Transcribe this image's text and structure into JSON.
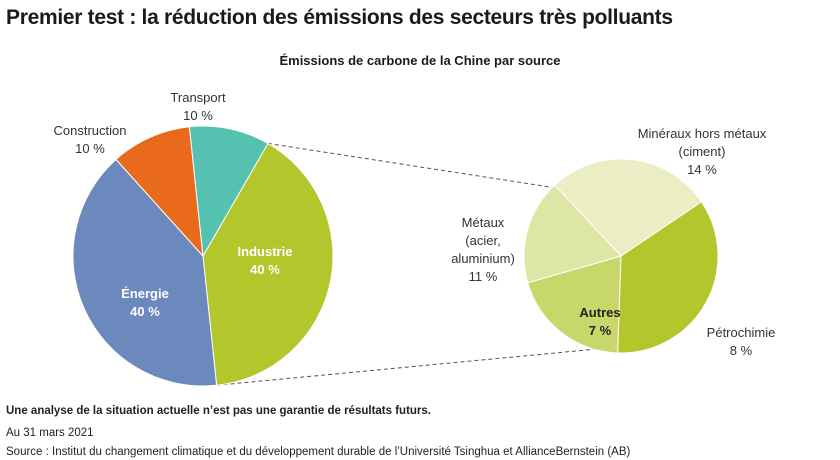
{
  "page": {
    "title": "Premier test : la réduction des émissions des secteurs très polluants",
    "disclaimer": "Une analyse de la situation actuelle n’est pas une garantie de résultats futurs.",
    "date": "Au 31 mars 2021",
    "source": "Source : Institut du changement climatique et du développement durable de l’Université Tsinghua et AllianceBernstein (AB)"
  },
  "chart_data": [
    {
      "type": "pie",
      "title": "Émissions de carbone de la Chine par source",
      "slices": [
        {
          "label": "Industrie",
          "value": 40,
          "value_label": "40 %",
          "color": "#b3c62c",
          "label_color": "#ffffff",
          "bold": true
        },
        {
          "label": "Énergie",
          "value": 40,
          "value_label": "40 %",
          "color": "#6b89bd",
          "label_color": "#ffffff",
          "bold": true
        },
        {
          "label": "Construction",
          "value": 10,
          "value_label": "10 %",
          "color": "#ea6a1c",
          "label_color": "#333333",
          "bold": false
        },
        {
          "label": "Transport",
          "value": 10,
          "value_label": "10 %",
          "color": "#55c1b0",
          "label_color": "#333333",
          "bold": false
        }
      ]
    },
    {
      "type": "pie",
      "title": "",
      "parent_slice": "Industrie",
      "slices": [
        {
          "label": "Minéraux hors métaux (ciment)",
          "lines": [
            "Minéraux hors métaux",
            "(ciment)"
          ],
          "value": 14,
          "value_label": "14 %",
          "color": "#b3c62c",
          "label_color": "#333333",
          "bold": false
        },
        {
          "label": "Pétrochimie",
          "lines": [
            "Pétrochimie"
          ],
          "value": 8,
          "value_label": "8 %",
          "color": "#c8d769",
          "label_color": "#333333",
          "bold": false
        },
        {
          "label": "Autres",
          "lines": [
            "Autres"
          ],
          "value": 7,
          "value_label": "7 %",
          "color": "#dde6a5",
          "label_color": "#222222",
          "bold": true
        },
        {
          "label": "Métaux (acier, aluminium)",
          "lines": [
            "Métaux",
            "(acier,",
            "aluminium)"
          ],
          "value": 11,
          "value_label": "11 %",
          "color": "#ebedc4",
          "label_color": "#333333",
          "bold": false
        }
      ]
    }
  ]
}
